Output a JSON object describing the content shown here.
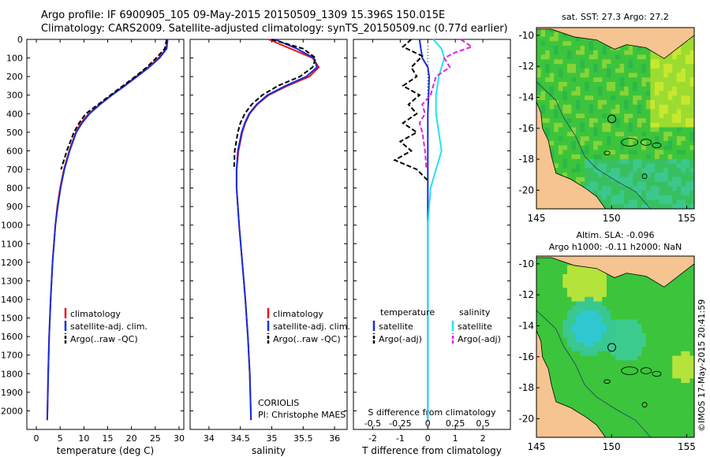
{
  "header": {
    "line1": "Argo profile: IF 6900905_105 09-May-2015 20150509_1309 15.396S 150.015E",
    "line2": "Climatology: CARS2009. Satellite-adjusted climatology: synTS_20150509.nc (0.77d earlier)"
  },
  "stamp": "©IMOS 17-May-2015 20:41:59",
  "colors": {
    "climatology": "#e8121e",
    "satellite": "#1530d8",
    "argo": "#000000",
    "sal_satellite": "#22e3f0",
    "sal_argo": "#e020e0",
    "land": "#f5c490",
    "ocean_green": "#3cc43c"
  },
  "chart_data": [
    {
      "type": "line",
      "id": "temperature",
      "xlabel": "temperature (deg C)",
      "xlim": [
        -2,
        31
      ],
      "ylim": [
        2100,
        0
      ],
      "xticks": [
        0,
        5,
        10,
        15,
        20,
        25,
        30
      ],
      "yticks": [
        0,
        100,
        200,
        300,
        400,
        500,
        600,
        700,
        800,
        900,
        1000,
        1100,
        1200,
        1300,
        1400,
        1500,
        1600,
        1700,
        1800,
        1900,
        2000
      ],
      "legend": [
        "climatology",
        "satellite-adj. clim.",
        "Argo(..raw -QC)"
      ],
      "series": [
        {
          "name": "climatology",
          "depth": [
            0,
            50,
            100,
            150,
            200,
            250,
            300,
            350,
            400,
            450,
            500,
            600,
            700,
            800,
            900,
            1000,
            1200,
            1400,
            1600,
            1800,
            2050
          ],
          "values": [
            27.5,
            27.3,
            25.7,
            23.5,
            21.0,
            18.5,
            15.8,
            13.3,
            11.0,
            9.4,
            8.3,
            6.9,
            5.8,
            5.0,
            4.4,
            4.0,
            3.4,
            3.0,
            2.7,
            2.5,
            2.3
          ]
        },
        {
          "name": "satellite-adj. clim.",
          "depth": [
            0,
            50,
            100,
            150,
            200,
            250,
            300,
            350,
            400,
            450,
            500,
            600,
            700,
            800,
            900,
            1000,
            1200,
            1400,
            1600,
            1800,
            2050
          ],
          "values": [
            27.6,
            27.4,
            25.9,
            23.7,
            21.2,
            18.6,
            15.9,
            13.4,
            11.2,
            9.6,
            8.4,
            7.0,
            5.9,
            5.1,
            4.5,
            4.0,
            3.4,
            3.0,
            2.7,
            2.5,
            2.3
          ]
        },
        {
          "name": "Argo(..raw -QC)",
          "depth": [
            0,
            50,
            100,
            150,
            200,
            250,
            300,
            350,
            400,
            450,
            500,
            600,
            700
          ],
          "values": [
            27.4,
            27.0,
            25.2,
            23.2,
            20.8,
            18.2,
            15.6,
            13.0,
            10.4,
            9.0,
            7.9,
            6.4,
            5.2
          ]
        }
      ]
    },
    {
      "type": "line",
      "id": "salinity",
      "xlabel": "salinity",
      "xlim": [
        33.7,
        36.2
      ],
      "ylim": [
        2100,
        0
      ],
      "xticks": [
        34,
        34.5,
        35,
        35.5,
        36
      ],
      "legend": [
        "climatology",
        "satellite-adj. clim.",
        "Argo(..raw -QC)"
      ],
      "annotations": [
        "CORIOLIS",
        "PI: Christophe MAES"
      ],
      "series": [
        {
          "name": "climatology",
          "depth": [
            0,
            50,
            100,
            150,
            200,
            250,
            300,
            350,
            400,
            450,
            500,
            600,
            700,
            800,
            900,
            1000,
            1200,
            1400,
            1600,
            1800,
            2050
          ],
          "values": [
            34.95,
            35.3,
            35.65,
            35.75,
            35.6,
            35.25,
            34.95,
            34.77,
            34.65,
            34.58,
            34.53,
            34.47,
            34.44,
            34.44,
            34.46,
            34.48,
            34.53,
            34.58,
            34.62,
            34.65,
            34.67
          ]
        },
        {
          "name": "satellite-adj. clim.",
          "depth": [
            0,
            50,
            100,
            150,
            200,
            250,
            300,
            350,
            400,
            450,
            500,
            600,
            700,
            800,
            900,
            1000,
            1200,
            1400,
            1600,
            1800,
            2050
          ],
          "values": [
            35.05,
            35.4,
            35.67,
            35.72,
            35.55,
            35.22,
            34.93,
            34.76,
            34.64,
            34.57,
            34.52,
            34.46,
            34.44,
            34.44,
            34.46,
            34.48,
            34.53,
            34.58,
            34.62,
            34.65,
            34.67
          ]
        },
        {
          "name": "Argo(..raw -QC)",
          "depth": [
            0,
            50,
            100,
            150,
            200,
            250,
            300,
            350,
            400,
            450,
            500,
            600,
            700
          ],
          "values": [
            35.0,
            35.5,
            35.7,
            35.65,
            35.45,
            35.1,
            34.85,
            34.68,
            34.57,
            34.5,
            34.46,
            34.41,
            34.4
          ]
        }
      ]
    },
    {
      "type": "line",
      "id": "difference",
      "xlabel": "T difference from climatology",
      "xlabel_top": "S difference from climatology",
      "xlim": [
        -2.7,
        3
      ],
      "ylim": [
        2100,
        0
      ],
      "xticks": [
        -2,
        -1,
        0,
        1,
        2
      ],
      "xtick_labels_s": [
        "-0.5",
        "-0.25",
        "0",
        "0.25",
        "0.5"
      ],
      "legend_headers": [
        "temperature",
        "salinity"
      ],
      "legend": [
        "satellite",
        "Argo(-adj)",
        "satellite",
        "Argo(-adj)"
      ],
      "series": [
        {
          "name": "temperature satellite",
          "depth": [
            0,
            50,
            100,
            150,
            200,
            300,
            400,
            500,
            700,
            1000,
            1500,
            2050
          ],
          "values": [
            -0.3,
            -0.25,
            -0.2,
            0.0,
            0.05,
            0.03,
            0.0,
            0.0,
            0.0,
            0.0,
            0.0,
            0.0
          ]
        },
        {
          "name": "temperature Argo(-adj)",
          "depth": [
            0,
            40,
            90,
            150,
            200,
            250,
            300,
            350,
            400,
            450,
            500,
            550,
            600,
            650,
            700,
            760
          ],
          "values": [
            -0.6,
            -0.9,
            -0.2,
            -0.6,
            -0.4,
            -0.9,
            -0.3,
            -0.7,
            -0.4,
            -0.9,
            -0.4,
            -1.0,
            -0.6,
            -1.2,
            -0.4,
            0.0
          ]
        },
        {
          "name": "salinity satellite",
          "depth": [
            0,
            50,
            100,
            200,
            300,
            400,
            500,
            600,
            700,
            800,
            1000,
            1500,
            2050
          ],
          "values": [
            0.2,
            0.5,
            0.6,
            0.4,
            0.3,
            0.3,
            0.4,
            0.5,
            0.3,
            0.1,
            0.0,
            0.0,
            0.0
          ]
        },
        {
          "name": "salinity Argo(-adj)",
          "depth": [
            0,
            40,
            70,
            100,
            150,
            200,
            300,
            350,
            400,
            450,
            500,
            600,
            700
          ],
          "values": [
            1.2,
            1.6,
            1.0,
            0.6,
            0.8,
            0.3,
            0.1,
            -0.2,
            -0.1,
            -0.3,
            -0.2,
            -0.1,
            -0.05
          ]
        }
      ]
    },
    {
      "type": "heatmap",
      "id": "sst-map",
      "title": "sat. SST: 27.3 Argo: 27.2",
      "xlim": [
        145,
        155.5
      ],
      "ylim": [
        -21.2,
        -9.5
      ],
      "xticks": [
        145,
        150,
        155
      ],
      "yticks": [
        -10,
        -12,
        -14,
        -16,
        -18,
        -20
      ],
      "argo_position": {
        "lon": 150.015,
        "lat": -15.396
      }
    },
    {
      "type": "heatmap",
      "id": "sla-map",
      "title_line1": "Altim. SLA: -0.096",
      "title_line2": "Argo h1000: -0.11 h2000: NaN",
      "xlim": [
        145,
        155.5
      ],
      "ylim": [
        -21.2,
        -9.5
      ],
      "xticks": [
        145,
        150,
        155
      ],
      "yticks": [
        -10,
        -12,
        -14,
        -16,
        -18,
        -20
      ],
      "argo_position": {
        "lon": 150.015,
        "lat": -15.396
      }
    }
  ]
}
